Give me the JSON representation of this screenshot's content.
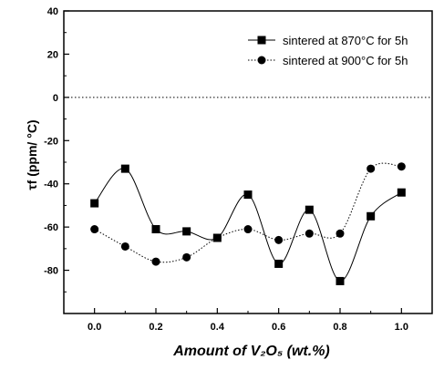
{
  "chart_data": {
    "type": "line",
    "title": "",
    "xlabel": "Amount of V₂O₅ (wt.%)",
    "ylabel": "τf (ppm/ °C)",
    "xlim": [
      -0.1,
      1.1
    ],
    "ylim": [
      -100,
      40
    ],
    "xticks": [
      0.0,
      0.2,
      0.4,
      0.6,
      0.8,
      1.0
    ],
    "xtick_labels": [
      "0.0",
      "0.2",
      "0.4",
      "0.6",
      "0.8",
      "1.0"
    ],
    "yticks": [
      -80,
      -60,
      -40,
      -20,
      0,
      20,
      40
    ],
    "ytick_labels": [
      "-80",
      "-60",
      "-40",
      "-20",
      "0",
      "20",
      "40"
    ],
    "reference_line": {
      "y": 0,
      "style": "dotted"
    },
    "legend_position": "top-right",
    "grid": false,
    "x": [
      0.0,
      0.1,
      0.2,
      0.3,
      0.4,
      0.5,
      0.6,
      0.7,
      0.8,
      0.9,
      1.0
    ],
    "series": [
      {
        "name": "sintered at 870°C for 5h",
        "marker": "square",
        "line_style": "solid",
        "color": "#000000",
        "values": [
          -49,
          -33,
          -61,
          -62,
          -65,
          -45,
          -77,
          -52,
          -85,
          -55,
          -44
        ]
      },
      {
        "name": "sintered at 900°C for 5h",
        "marker": "circle",
        "line_style": "dotted",
        "color": "#000000",
        "values": [
          -61,
          -69,
          -76,
          -74,
          -65,
          -61,
          -66,
          -63,
          -63,
          -33,
          -32
        ]
      }
    ]
  }
}
